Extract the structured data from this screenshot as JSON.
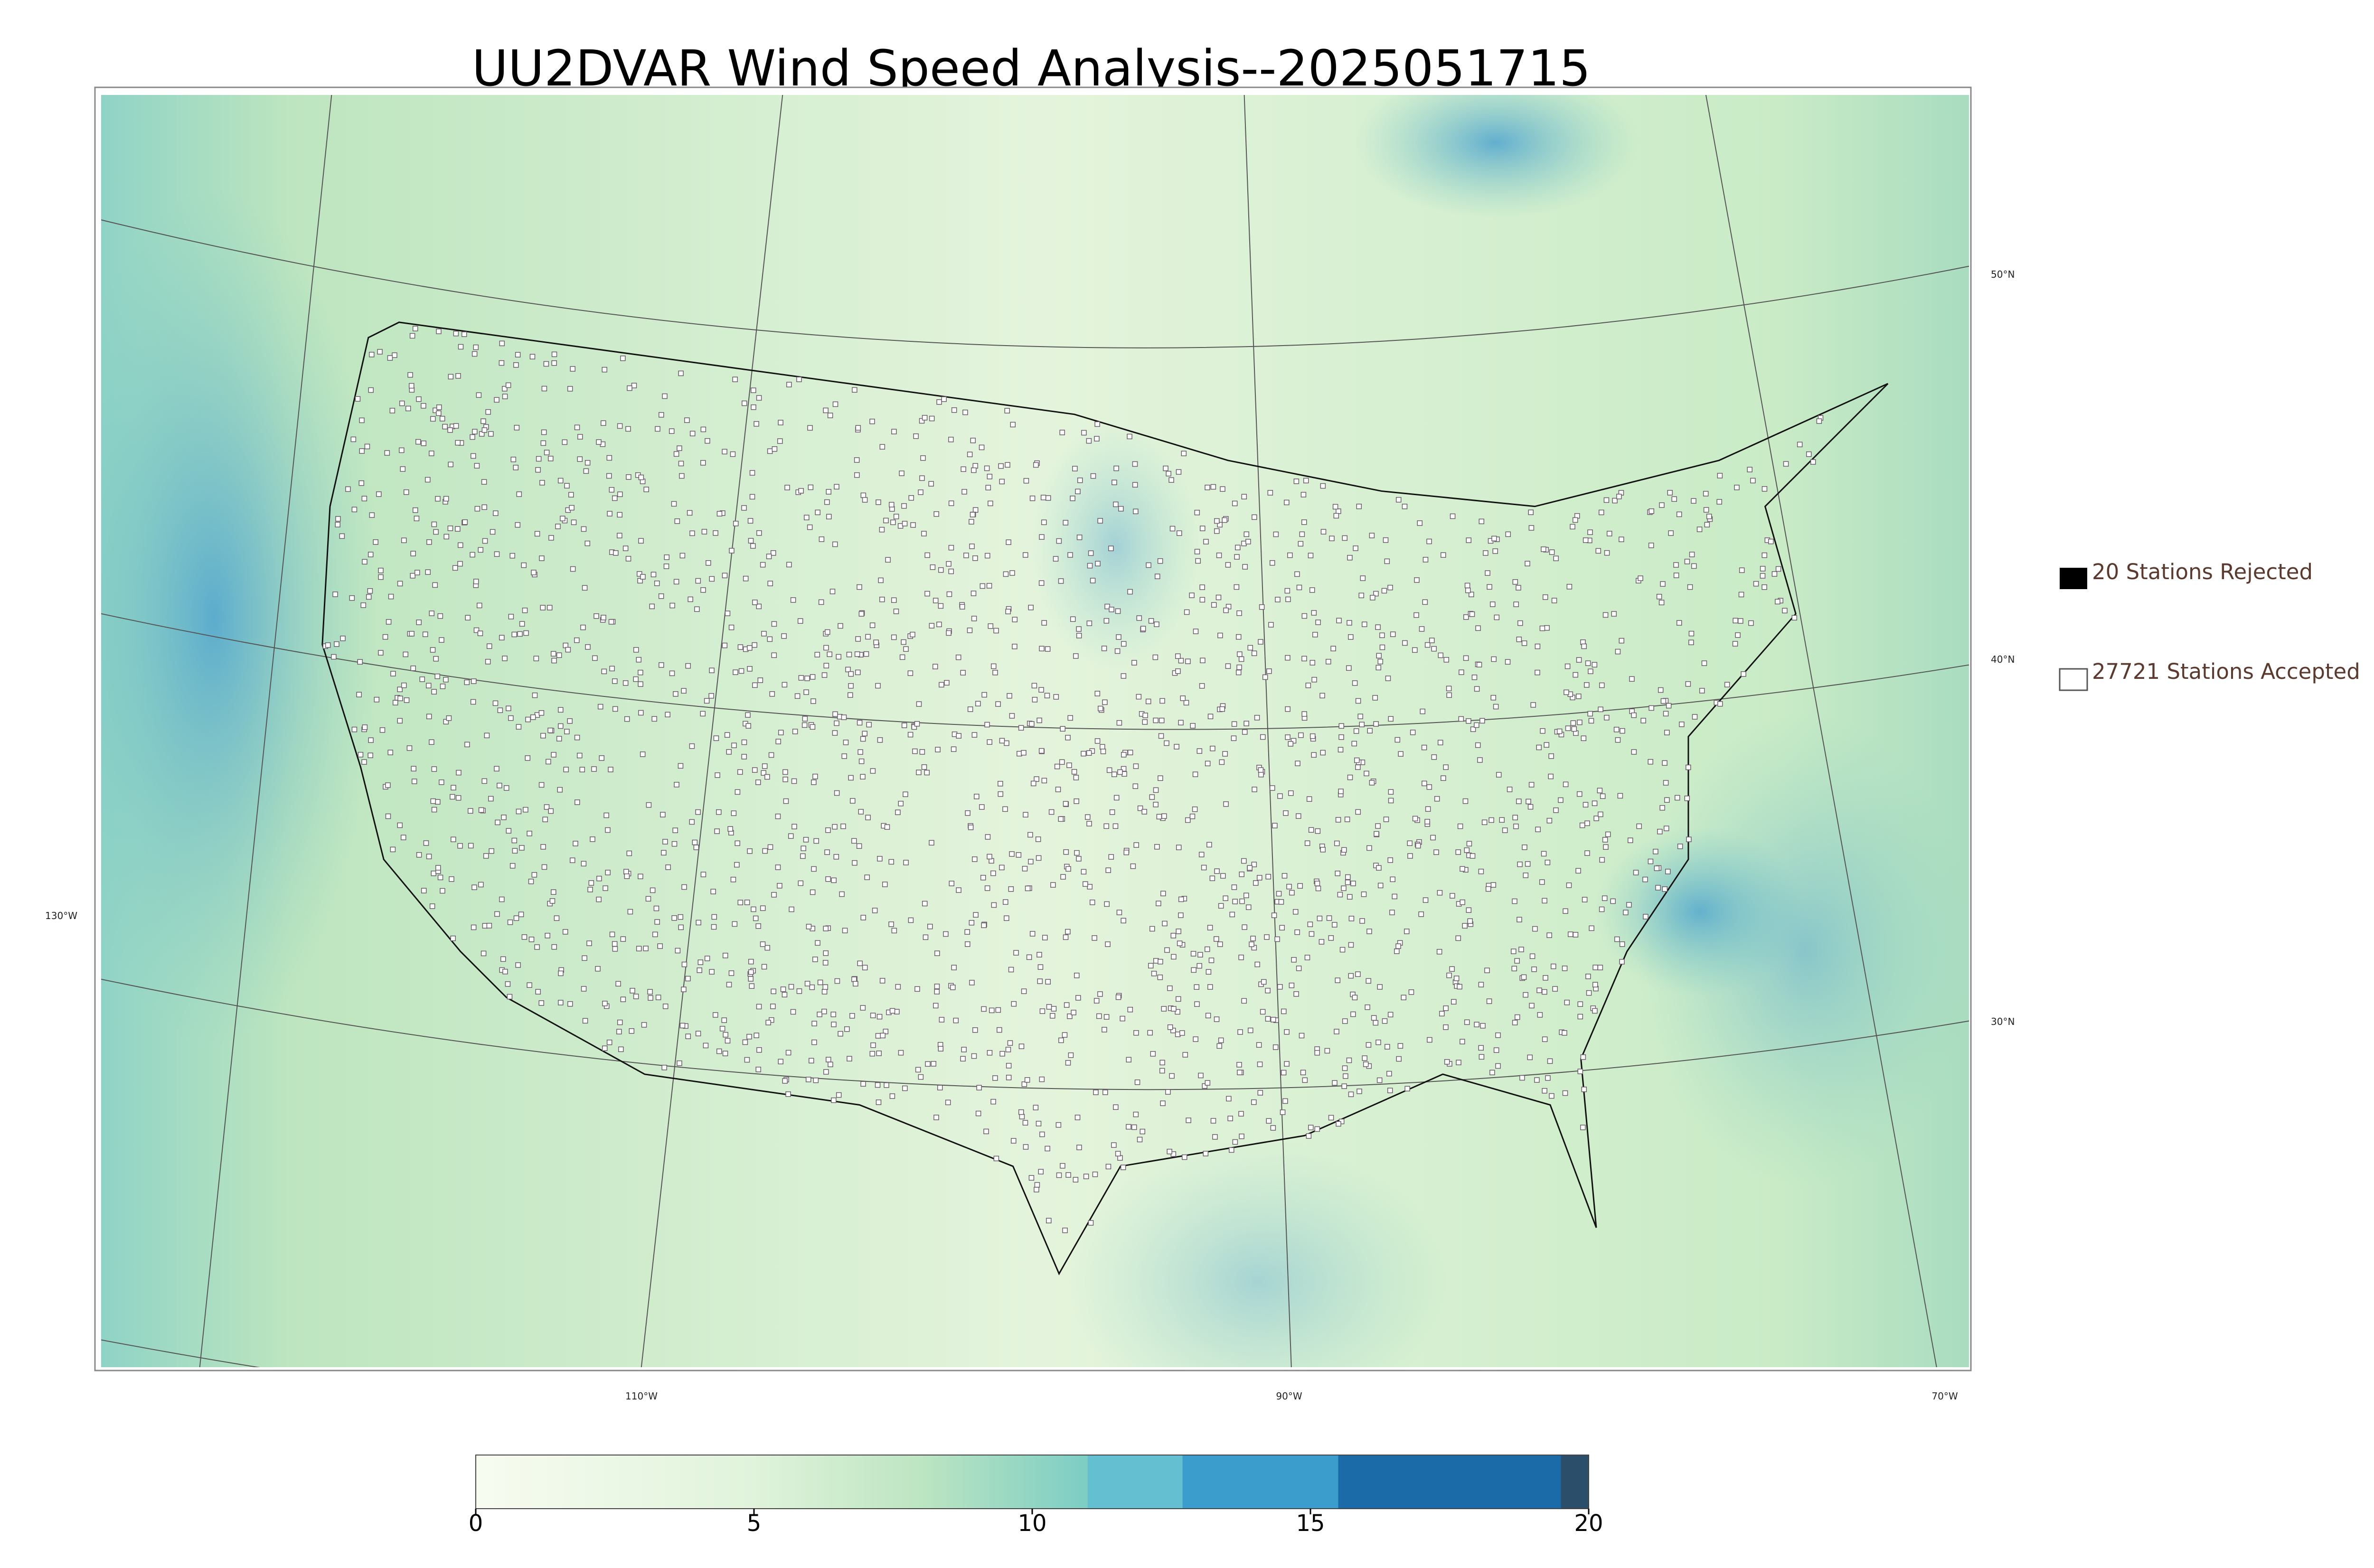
{
  "title": "UU2DVAR Wind Speed Analysis--2025051715",
  "map": {
    "lat_labels": [
      "50°N",
      "40°N",
      "30°N"
    ],
    "lon_labels": [
      "130°W",
      "110°W",
      "90°W",
      "70°W"
    ]
  },
  "legend": {
    "entries": [
      "20 Stations Rejected",
      "27721 Stations Accepted"
    ]
  },
  "colorbar": {
    "lim": [
      0,
      20
    ],
    "ticks": [
      0,
      5,
      10,
      15,
      20
    ]
  }
}
